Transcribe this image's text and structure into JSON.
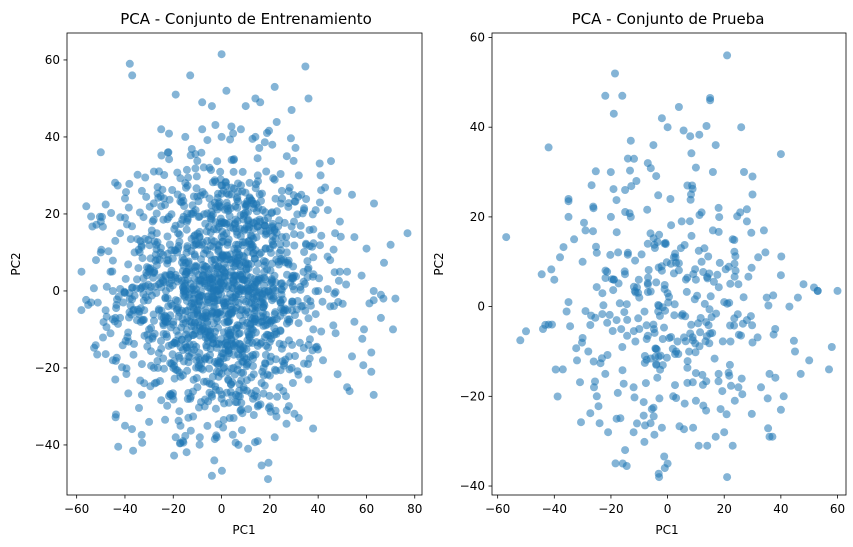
{
  "chart_data": [
    {
      "type": "scatter",
      "title": "PCA - Conjunto de Entrenamiento",
      "xlabel": "PC1",
      "ylabel": "PC2",
      "xlim": [
        -64,
        83
      ],
      "ylim": [
        -53,
        67
      ],
      "xticks": [
        -60,
        -40,
        -20,
        0,
        20,
        40,
        60,
        80
      ],
      "xtick_labels": [
        "−60",
        "−40",
        "−20",
        "0",
        "20",
        "40",
        "60",
        "80"
      ],
      "yticks": [
        -40,
        -20,
        0,
        20,
        40,
        60
      ],
      "ytick_labels": [
        "−40",
        "−20",
        "0",
        "20",
        "40",
        "60"
      ],
      "grid": false,
      "marker_color": "#1f77b4",
      "marker_alpha": 0.55,
      "n_points_estimate": 1600,
      "distribution": {
        "mean_x": 0,
        "mean_y": 0,
        "std_x": 21,
        "std_y": 17
      },
      "points": [
        [
          0,
          61.5
        ],
        [
          -38,
          59
        ],
        [
          -37,
          56
        ],
        [
          22,
          53
        ],
        [
          -13,
          56
        ],
        [
          -50,
          36
        ],
        [
          16,
          49
        ],
        [
          14,
          50
        ],
        [
          -8,
          49
        ],
        [
          -19,
          51
        ],
        [
          2,
          52
        ],
        [
          29,
          47
        ],
        [
          36,
          50
        ],
        [
          -4,
          48
        ],
        [
          -40,
          24
        ],
        [
          41,
          30
        ],
        [
          48,
          26
        ],
        [
          54,
          25
        ],
        [
          -56,
          22
        ],
        [
          -58,
          5
        ],
        [
          -50,
          18
        ],
        [
          -50,
          10
        ],
        [
          -52,
          8
        ],
        [
          -54,
          -3
        ],
        [
          -46,
          -11
        ],
        [
          -44,
          -23
        ],
        [
          -40,
          -35
        ],
        [
          -33,
          -27
        ],
        [
          -30,
          -34
        ],
        [
          -19,
          -38
        ],
        [
          -16,
          -39
        ],
        [
          -9,
          -38
        ],
        [
          -2,
          -38
        ],
        [
          -3,
          -44
        ],
        [
          -4,
          -48
        ],
        [
          7,
          -40
        ],
        [
          11,
          -41
        ],
        [
          15,
          -39
        ],
        [
          22,
          -38
        ],
        [
          27,
          -31
        ],
        [
          32,
          -33
        ],
        [
          36,
          -23
        ],
        [
          52,
          -25
        ],
        [
          53,
          -26
        ],
        [
          62,
          -21
        ],
        [
          63,
          -27
        ],
        [
          66,
          -7
        ],
        [
          71,
          -10
        ],
        [
          72,
          -2
        ],
        [
          66,
          -1
        ],
        [
          67,
          -2
        ],
        [
          70,
          12
        ],
        [
          77,
          15
        ],
        [
          60,
          11
        ],
        [
          63,
          0
        ],
        [
          62,
          -16
        ],
        [
          54,
          -17
        ],
        [
          59,
          -10
        ],
        [
          45,
          -4
        ],
        [
          49,
          5
        ],
        [
          52,
          5
        ],
        [
          55,
          14
        ],
        [
          49,
          18
        ],
        [
          44,
          21
        ],
        [
          47,
          15
        ],
        [
          39,
          21
        ],
        [
          33,
          25
        ],
        [
          36,
          6
        ],
        [
          39,
          -6
        ],
        [
          36,
          -14
        ],
        [
          29,
          -20
        ],
        [
          24,
          -25
        ],
        [
          20,
          -22
        ],
        [
          13,
          -28
        ],
        [
          6,
          -27
        ],
        [
          0,
          -28
        ],
        [
          -7,
          -30
        ],
        [
          -13,
          -28
        ],
        [
          -21,
          -27
        ],
        [
          -28,
          -20
        ],
        [
          -33,
          -19
        ],
        [
          -39,
          -12
        ],
        [
          -42,
          -7
        ],
        [
          -45,
          0
        ],
        [
          -46,
          5
        ],
        [
          -44,
          13
        ],
        [
          -40,
          19
        ],
        [
          -33,
          26
        ],
        [
          -28,
          31
        ],
        [
          -22,
          36
        ],
        [
          -15,
          40
        ],
        [
          -8,
          42
        ],
        [
          0,
          40
        ],
        [
          8,
          42
        ],
        [
          14,
          40
        ],
        [
          21,
          38
        ],
        [
          27,
          35
        ],
        [
          32,
          30
        ],
        [
          30,
          18
        ],
        [
          27,
          10
        ],
        [
          25,
          2
        ],
        [
          22,
          -6
        ],
        [
          18,
          -12
        ],
        [
          12,
          -17
        ],
        [
          5,
          -20
        ],
        [
          -2,
          -21
        ],
        [
          -9,
          -18
        ],
        [
          -15,
          -14
        ],
        [
          -20,
          -8
        ],
        [
          -23,
          0
        ],
        [
          -22,
          8
        ],
        [
          -18,
          15
        ],
        [
          -12,
          20
        ],
        [
          -5,
          24
        ],
        [
          3,
          25
        ],
        [
          10,
          22
        ],
        [
          16,
          18
        ],
        [
          20,
          11
        ],
        [
          18,
          3
        ],
        [
          14,
          -4
        ],
        [
          9,
          -9
        ],
        [
          3,
          -11
        ],
        [
          -3,
          -12
        ],
        [
          -9,
          -9
        ],
        [
          -13,
          -4
        ],
        [
          -14,
          3
        ],
        [
          -11,
          9
        ],
        [
          -6,
          13
        ],
        [
          0,
          14
        ],
        [
          6,
          12
        ],
        [
          10,
          7
        ],
        [
          11,
          0
        ],
        [
          8,
          -5
        ],
        [
          3,
          -6
        ],
        [
          -2,
          -6
        ],
        [
          -6,
          -3
        ],
        [
          -7,
          2
        ],
        [
          -4,
          6
        ],
        [
          1,
          7
        ],
        [
          5,
          4
        ],
        [
          6,
          -1
        ],
        [
          2,
          -2
        ],
        [
          -2,
          0
        ],
        [
          1,
          2
        ],
        [
          -30,
          5
        ],
        [
          -32,
          -5
        ],
        [
          -27,
          12
        ],
        [
          -35,
          3
        ],
        [
          28,
          -8
        ],
        [
          33,
          -4
        ],
        [
          30,
          4
        ],
        [
          35,
          12
        ],
        [
          -25,
          -15
        ],
        [
          -20,
          -20
        ],
        [
          -10,
          -25
        ],
        [
          5,
          -33
        ],
        [
          15,
          -30
        ],
        [
          25,
          -15
        ],
        [
          38,
          -10
        ],
        [
          42,
          -18
        ],
        [
          45,
          8
        ],
        [
          40,
          0
        ],
        [
          -38,
          -2
        ],
        [
          -36,
          10
        ],
        [
          -42,
          15
        ],
        [
          -48,
          -5
        ],
        [
          -25,
          22
        ],
        [
          -15,
          28
        ],
        [
          -5,
          32
        ],
        [
          5,
          34
        ],
        [
          15,
          30
        ],
        [
          25,
          26
        ],
        [
          38,
          16
        ],
        [
          10,
          48
        ],
        [
          -25,
          42
        ],
        [
          -30,
          -10
        ],
        [
          20,
          -30
        ],
        [
          -45,
          -18
        ],
        [
          55,
          -8
        ],
        [
          58,
          4
        ]
      ]
    },
    {
      "type": "scatter",
      "title": "PCA - Conjunto de Prueba",
      "xlabel": "PC1",
      "ylabel": "PC2",
      "xlim": [
        -62,
        63
      ],
      "ylim": [
        -42,
        61
      ],
      "xticks": [
        -60,
        -40,
        -20,
        0,
        20,
        40,
        60
      ],
      "xtick_labels": [
        "−60",
        "−40",
        "−20",
        "0",
        "20",
        "40",
        "60"
      ],
      "yticks": [
        -40,
        -20,
        0,
        20,
        40,
        60
      ],
      "ytick_labels": [
        "−40",
        "−20",
        "0",
        "20",
        "40",
        "60"
      ],
      "grid": false,
      "marker_color": "#1f77b4",
      "marker_alpha": 0.55,
      "n_points_estimate": 420,
      "distribution": {
        "mean_x": 0,
        "mean_y": 0,
        "std_x": 19,
        "std_y": 16
      },
      "points": [
        [
          21,
          56
        ],
        [
          -22,
          47
        ],
        [
          -16,
          47
        ],
        [
          15,
          46.5
        ],
        [
          15,
          46
        ],
        [
          4,
          44.5
        ],
        [
          -19,
          43
        ],
        [
          -2,
          42
        ],
        [
          0,
          40
        ],
        [
          26,
          40
        ],
        [
          8,
          38
        ],
        [
          -13,
          37
        ],
        [
          -5,
          36
        ],
        [
          -42,
          35.5
        ],
        [
          40,
          34
        ],
        [
          -14,
          33
        ],
        [
          -7,
          32
        ],
        [
          10,
          31
        ],
        [
          16,
          30
        ],
        [
          30,
          29
        ],
        [
          -57,
          15.5
        ],
        [
          -50,
          -5.5
        ],
        [
          -52,
          -7.5
        ],
        [
          -44,
          -5
        ],
        [
          -42,
          -4
        ],
        [
          -40,
          6
        ],
        [
          -38,
          11
        ],
        [
          -35,
          20
        ],
        [
          -35,
          24
        ],
        [
          -35,
          23.5
        ],
        [
          -33,
          15
        ],
        [
          -30,
          10
        ],
        [
          -29,
          -1
        ],
        [
          -28,
          -10
        ],
        [
          -25,
          -20
        ],
        [
          -24,
          -26
        ],
        [
          -21,
          -28
        ],
        [
          -18,
          -25
        ],
        [
          -15,
          -32
        ],
        [
          -12,
          -28
        ],
        [
          -6,
          -26
        ],
        [
          -2,
          -27
        ],
        [
          -3,
          -38
        ],
        [
          -1,
          -36
        ],
        [
          0,
          -35
        ],
        [
          9,
          -27
        ],
        [
          11,
          -31
        ],
        [
          14,
          -31
        ],
        [
          17,
          -29
        ],
        [
          20,
          -28
        ],
        [
          21,
          -38
        ],
        [
          23,
          -31
        ],
        [
          36,
          -29
        ],
        [
          37,
          -29
        ],
        [
          40,
          -23
        ],
        [
          41,
          -20
        ],
        [
          47,
          -15
        ],
        [
          50,
          -12
        ],
        [
          53,
          3.5
        ],
        [
          53,
          3.5
        ],
        [
          57,
          -14
        ],
        [
          58,
          -9
        ],
        [
          60,
          3.5
        ],
        [
          48,
          5
        ],
        [
          46,
          2
        ],
        [
          45,
          -10
        ],
        [
          43,
          0
        ],
        [
          40,
          7
        ],
        [
          38,
          -5
        ],
        [
          36,
          -15
        ],
        [
          34,
          17
        ],
        [
          32,
          11
        ],
        [
          30,
          25
        ],
        [
          28,
          19
        ],
        [
          25,
          -18
        ],
        [
          22,
          -13
        ],
        [
          18,
          22
        ],
        [
          16,
          17
        ],
        [
          13,
          13
        ],
        [
          10,
          -21
        ],
        [
          7,
          -17
        ],
        [
          5,
          19
        ],
        [
          3,
          -10
        ],
        [
          1,
          24
        ],
        [
          -2,
          8
        ],
        [
          -4,
          -13
        ],
        [
          -7,
          14
        ],
        [
          -10,
          -5
        ],
        [
          -13,
          20
        ],
        [
          -16,
          -9
        ],
        [
          -19,
          6
        ],
        [
          -22,
          -15
        ],
        [
          -25,
          12
        ],
        [
          -27,
          -2
        ],
        [
          -30,
          -7
        ],
        [
          -20,
          20
        ],
        [
          -15,
          26
        ],
        [
          -10,
          2
        ],
        [
          -5,
          -4
        ],
        [
          0,
          3
        ],
        [
          5,
          -2
        ],
        [
          10,
          6
        ],
        [
          15,
          -6
        ],
        [
          20,
          1
        ],
        [
          25,
          5
        ],
        [
          30,
          -8
        ],
        [
          35,
          2
        ],
        [
          -35,
          1
        ],
        [
          -32,
          -12
        ],
        [
          -26,
          -18
        ],
        [
          -12,
          -18
        ],
        [
          -8,
          -11
        ],
        [
          2,
          -20
        ],
        [
          8,
          -6
        ],
        [
          12,
          10
        ],
        [
          18,
          -15
        ],
        [
          24,
          8
        ],
        [
          28,
          -3
        ],
        [
          33,
          -18
        ],
        [
          -18,
          -3
        ],
        [
          -23,
          3
        ],
        [
          -14,
          12
        ],
        [
          -3,
          16
        ],
        [
          7,
          27
        ],
        [
          17,
          36
        ],
        [
          23,
          15
        ],
        [
          -37,
          -14
        ],
        [
          -29,
          17
        ],
        [
          -11,
          28
        ],
        [
          12,
          21
        ],
        [
          27,
          30
        ]
      ]
    }
  ]
}
